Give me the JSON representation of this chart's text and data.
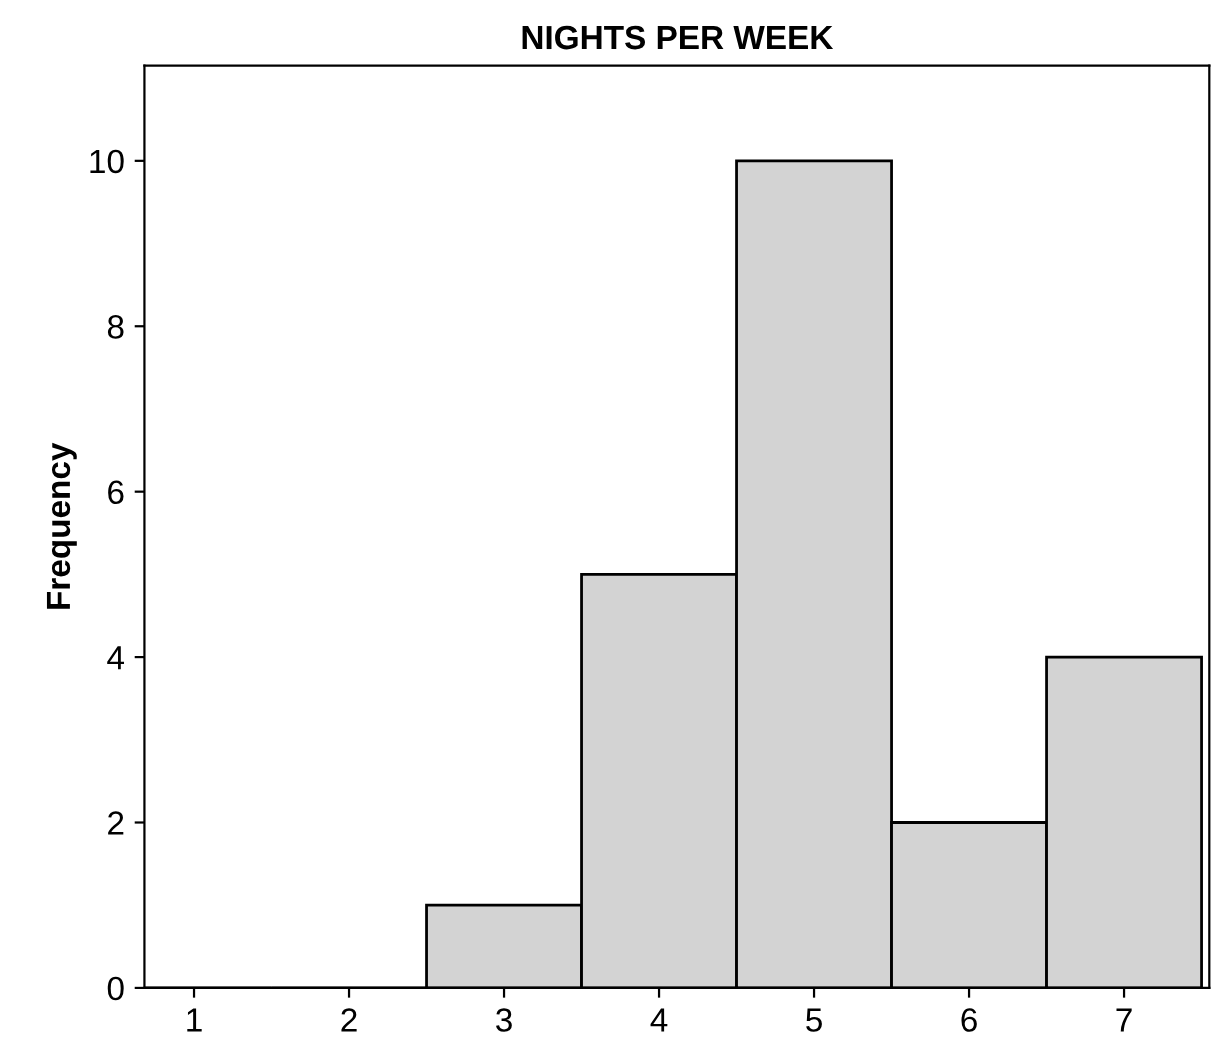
{
  "chart_data": {
    "type": "histogram",
    "title": "NIGHTS PER WEEK",
    "ylabel": "Frequency",
    "bins": [
      0.5,
      1.5,
      2.5,
      3.5,
      4.5,
      5.5,
      6.5,
      7.5
    ],
    "values": [
      0,
      0,
      1,
      5,
      10,
      2,
      4
    ],
    "color": "#d3d3d3",
    "xlim": [
      0.68,
      7.55
    ],
    "xticks": [
      1,
      2,
      3,
      4,
      5,
      6,
      7
    ],
    "ylim": [
      0,
      11.15
    ],
    "yticks": [
      0,
      2,
      4,
      6,
      8,
      10
    ],
    "grid": false,
    "legend": false
  }
}
